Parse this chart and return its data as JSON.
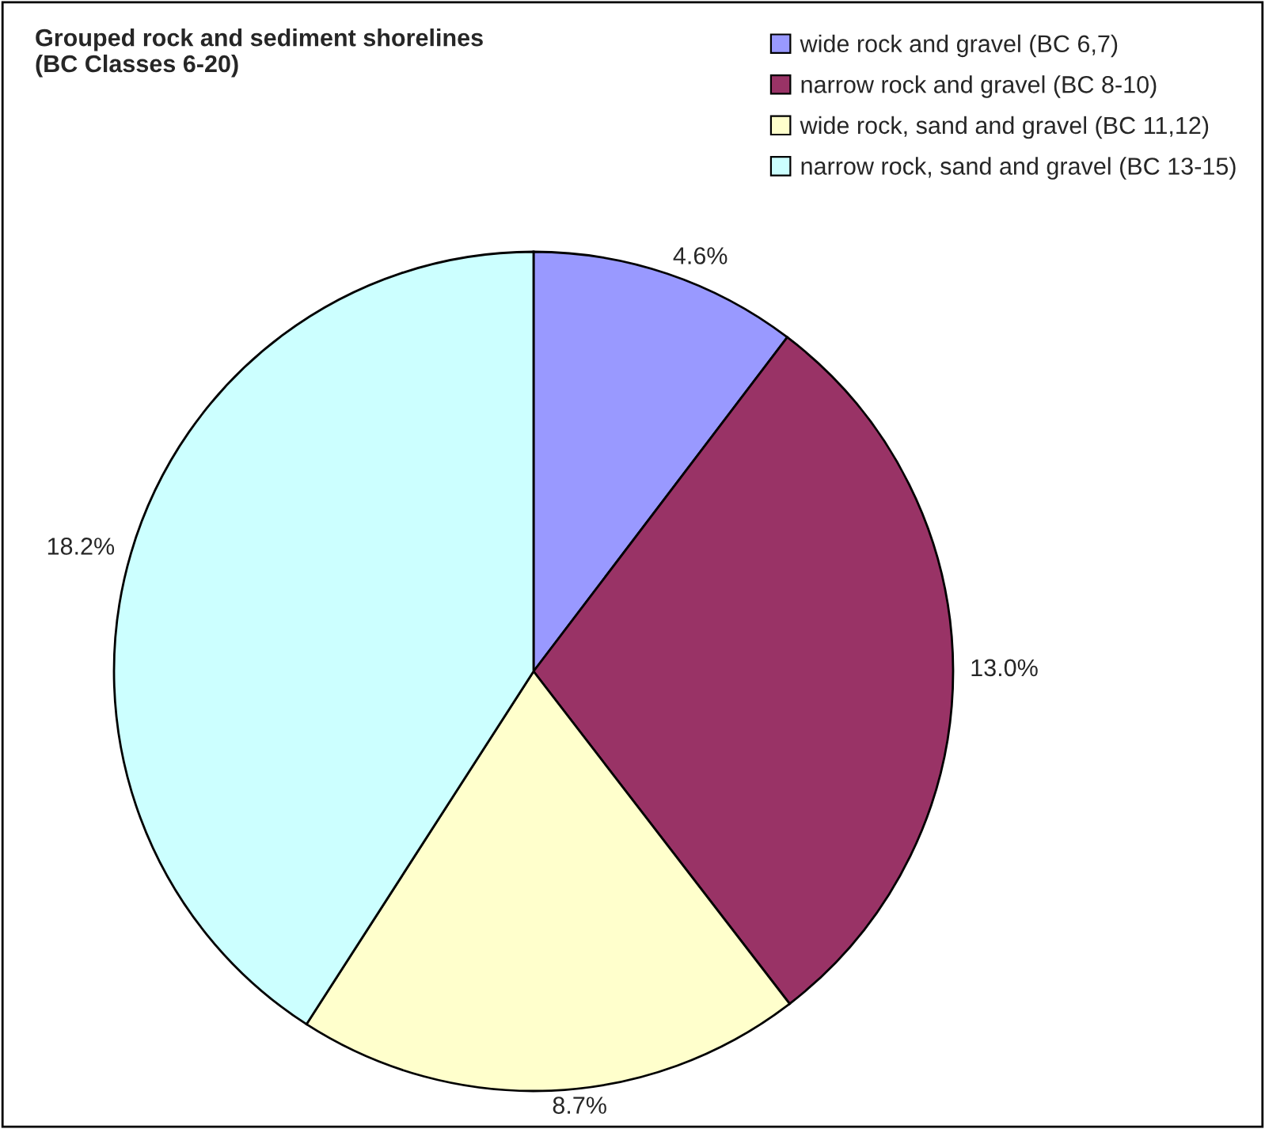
{
  "chart_data": {
    "type": "pie",
    "title": "Grouped rock and sediment shorelines\n(BC Classes 6-20)",
    "categories": [
      "wide rock and gravel (BC 6,7)",
      "narrow rock and gravel (BC 8-10)",
      "wide rock, sand and gravel (BC 11,12)",
      "narrow rock, sand and gravel (BC 13-15)"
    ],
    "values": [
      4.6,
      13.0,
      8.7,
      18.2
    ],
    "value_labels": [
      "4.6%",
      "13.0%",
      "8.7%",
      "18.2%"
    ],
    "colors": [
      "#9999ff",
      "#993366",
      "#ffffcc",
      "#ccffff"
    ],
    "legend": "top right"
  }
}
